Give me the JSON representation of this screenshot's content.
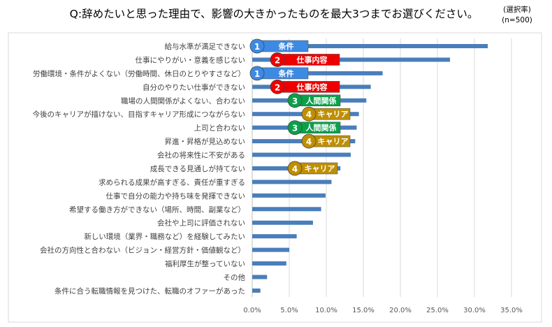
{
  "chart_data": {
    "type": "bar",
    "orientation": "horizontal",
    "title": "Q:辞めたいと思った理由で、影響の大きかったものを最大3つまでお選びください。",
    "unit_note": "(選択率)",
    "sample_note": "(n=500)",
    "categories": [
      "給与水準が満足できない",
      "仕事にやりがい・意義を感じない",
      "労働環境・条件がよくない（労働時間、休日のとりやすさなど）",
      "自分のやりたい仕事ができない",
      "職場の人間関係がよくない、合わない",
      "今後のキャリアが描けない、目指すキャリア形成につながらない",
      "上司と合わない",
      "昇進・昇格が見込めない",
      "会社の将来性に不安がある",
      "成長できる見通しが持てない",
      "求められる成果が高すぎる、責任が重すぎる",
      "仕事で自分の能力や持ち味を発揮できない",
      "希望する働き方ができない（場所、時間、副業など）",
      "会社や上司に評価されない",
      "新しい環境（業界・職務など）を経験してみたい",
      "会社の方向性と合わない（ビジョン・経営方針・価値観など）",
      "福利厚生が整っていない",
      "その他",
      "条件に合う転職情報を見つけた、転職のオファーがあった"
    ],
    "values": [
      31.8,
      26.7,
      17.6,
      16.0,
      15.4,
      14.4,
      14.1,
      13.9,
      13.3,
      11.9,
      10.7,
      9.9,
      9.3,
      8.2,
      6.0,
      5.0,
      4.6,
      2.0,
      1.1
    ],
    "xlim": [
      0,
      35
    ],
    "xticks": [
      "0.0%",
      "5.0%",
      "10.0%",
      "15.0%",
      "20.0%",
      "25.0%",
      "30.0%",
      "35.0%"
    ],
    "grid": true,
    "bar_color": "#4a7ebb",
    "annotation_groups": [
      {
        "rank": "1",
        "label": "条件",
        "color": "#3d8ae5"
      },
      {
        "rank": "2",
        "label": "仕事内容",
        "color": "#ee0000"
      },
      {
        "rank": "3",
        "label": "人間関係",
        "color": "#0aa04a"
      },
      {
        "rank": "4",
        "label": "キャリア",
        "color": "#bf8f00"
      }
    ],
    "annotations": [
      {
        "row": 0,
        "group": 0
      },
      {
        "row": 1,
        "group": 1
      },
      {
        "row": 2,
        "group": 0
      },
      {
        "row": 3,
        "group": 1
      },
      {
        "row": 4,
        "group": 2
      },
      {
        "row": 5,
        "group": 3
      },
      {
        "row": 6,
        "group": 2
      },
      {
        "row": 7,
        "group": 3
      },
      {
        "row": 9,
        "group": 3
      }
    ]
  }
}
